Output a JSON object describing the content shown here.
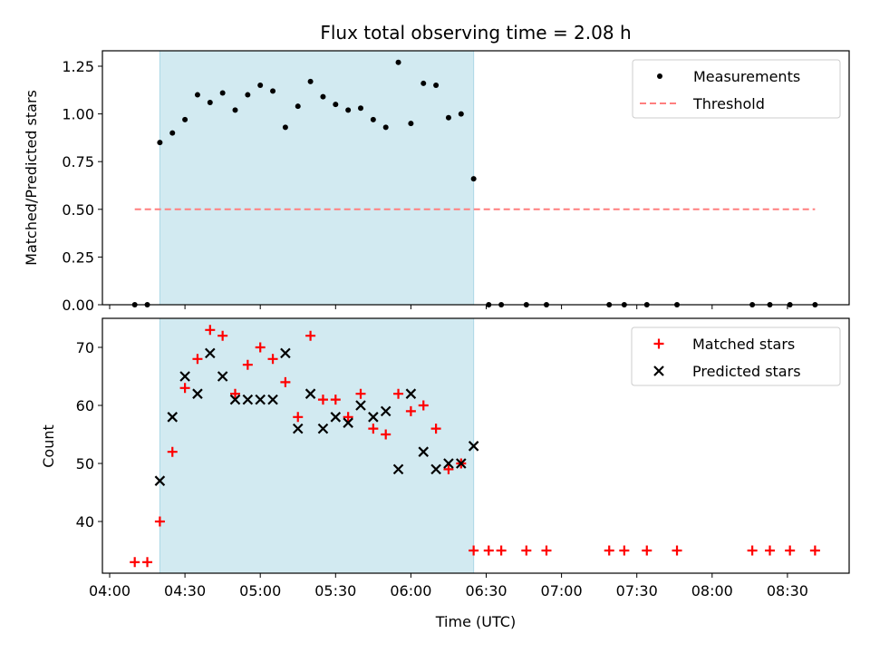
{
  "figure": {
    "title": "Flux total observing time = 2.08 h",
    "colors": {
      "span": "#add8e6",
      "threshold": "#ff7f7f",
      "matched": "#ff0000",
      "predicted": "#000000",
      "measurement": "#000000"
    }
  },
  "chart_data": [
    {
      "type": "scatter",
      "title": "Flux total observing time = 2.08 h",
      "xlabel": "",
      "ylabel": "Matched/Predicted stars",
      "xlim": [
        "04:00",
        "09:00"
      ],
      "ylim": [
        0,
        1.33
      ],
      "y_ticks": [
        "0.00",
        "0.25",
        "0.50",
        "0.75",
        "1.00",
        "1.25"
      ],
      "y_tick_values": [
        0,
        0.25,
        0.5,
        0.75,
        1.0,
        1.25
      ],
      "x_tick_labels_shown": false,
      "shaded_span": [
        "04:20",
        "06:25"
      ],
      "legend": {
        "placement": "upper right",
        "entries": [
          "Measurements",
          "Threshold"
        ]
      },
      "series": [
        {
          "name": "Measurements",
          "marker": "dot",
          "points": [
            [
              "04:10",
              0.0
            ],
            [
              "04:15",
              0.0
            ],
            [
              "04:20",
              0.85
            ],
            [
              "04:25",
              0.9
            ],
            [
              "04:30",
              0.97
            ],
            [
              "04:35",
              1.1
            ],
            [
              "04:40",
              1.06
            ],
            [
              "04:45",
              1.11
            ],
            [
              "04:50",
              1.02
            ],
            [
              "04:55",
              1.1
            ],
            [
              "05:00",
              1.15
            ],
            [
              "05:05",
              1.12
            ],
            [
              "05:10",
              0.93
            ],
            [
              "05:15",
              1.04
            ],
            [
              "05:20",
              1.17
            ],
            [
              "05:25",
              1.09
            ],
            [
              "05:30",
              1.05
            ],
            [
              "05:35",
              1.02
            ],
            [
              "05:40",
              1.03
            ],
            [
              "05:45",
              0.97
            ],
            [
              "05:50",
              0.93
            ],
            [
              "05:55",
              1.27
            ],
            [
              "06:00",
              0.95
            ],
            [
              "06:05",
              1.16
            ],
            [
              "06:10",
              1.15
            ],
            [
              "06:15",
              0.98
            ],
            [
              "06:20",
              1.0
            ],
            [
              "06:25",
              0.66
            ],
            [
              "06:31",
              0.0
            ],
            [
              "06:36",
              0.0
            ],
            [
              "06:46",
              0.0
            ],
            [
              "06:54",
              0.0
            ],
            [
              "07:19",
              0.0
            ],
            [
              "07:25",
              0.0
            ],
            [
              "07:34",
              0.0
            ],
            [
              "07:46",
              0.0
            ],
            [
              "08:16",
              0.0
            ],
            [
              "08:23",
              0.0
            ],
            [
              "08:31",
              0.0
            ],
            [
              "08:41",
              0.0
            ]
          ]
        },
        {
          "name": "Threshold",
          "marker": "dashed-line",
          "points": [
            [
              "04:10",
              0.5
            ],
            [
              "08:41",
              0.5
            ]
          ]
        }
      ]
    },
    {
      "type": "scatter",
      "title": "",
      "xlabel": "Time (UTC)",
      "ylabel": "Count",
      "xlim": [
        "04:00",
        "09:00"
      ],
      "ylim": [
        31,
        75
      ],
      "x_ticks": [
        "04:00",
        "04:30",
        "05:00",
        "05:30",
        "06:00",
        "06:30",
        "07:00",
        "07:30",
        "08:00",
        "08:30"
      ],
      "y_ticks": [
        "40",
        "50",
        "60",
        "70"
      ],
      "y_tick_values": [
        40,
        50,
        60,
        70
      ],
      "shaded_span": [
        "04:20",
        "06:25"
      ],
      "legend": {
        "placement": "upper right",
        "entries": [
          "Matched stars",
          "Predicted stars"
        ]
      },
      "series": [
        {
          "name": "Matched stars",
          "marker": "plus",
          "points": [
            [
              "04:10",
              33
            ],
            [
              "04:15",
              33
            ],
            [
              "04:20",
              40
            ],
            [
              "04:25",
              52
            ],
            [
              "04:30",
              63
            ],
            [
              "04:35",
              68
            ],
            [
              "04:40",
              73
            ],
            [
              "04:45",
              72
            ],
            [
              "04:50",
              62
            ],
            [
              "04:55",
              67
            ],
            [
              "05:00",
              70
            ],
            [
              "05:05",
              68
            ],
            [
              "05:10",
              64
            ],
            [
              "05:15",
              58
            ],
            [
              "05:20",
              72
            ],
            [
              "05:25",
              61
            ],
            [
              "05:30",
              61
            ],
            [
              "05:35",
              58
            ],
            [
              "05:40",
              62
            ],
            [
              "05:45",
              56
            ],
            [
              "05:50",
              55
            ],
            [
              "05:55",
              62
            ],
            [
              "06:00",
              59
            ],
            [
              "06:05",
              60
            ],
            [
              "06:10",
              56
            ],
            [
              "06:15",
              49
            ],
            [
              "06:20",
              50
            ],
            [
              "06:25",
              35
            ],
            [
              "06:31",
              35
            ],
            [
              "06:36",
              35
            ],
            [
              "06:46",
              35
            ],
            [
              "06:54",
              35
            ],
            [
              "07:19",
              35
            ],
            [
              "07:25",
              35
            ],
            [
              "07:34",
              35
            ],
            [
              "07:46",
              35
            ],
            [
              "08:16",
              35
            ],
            [
              "08:23",
              35
            ],
            [
              "08:31",
              35
            ],
            [
              "08:41",
              35
            ]
          ]
        },
        {
          "name": "Predicted stars",
          "marker": "x",
          "points": [
            [
              "04:20",
              47
            ],
            [
              "04:25",
              58
            ],
            [
              "04:30",
              65
            ],
            [
              "04:35",
              62
            ],
            [
              "04:40",
              69
            ],
            [
              "04:45",
              65
            ],
            [
              "04:50",
              61
            ],
            [
              "04:55",
              61
            ],
            [
              "05:00",
              61
            ],
            [
              "05:05",
              61
            ],
            [
              "05:10",
              69
            ],
            [
              "05:15",
              56
            ],
            [
              "05:20",
              62
            ],
            [
              "05:25",
              56
            ],
            [
              "05:30",
              58
            ],
            [
              "05:35",
              57
            ],
            [
              "05:40",
              60
            ],
            [
              "05:45",
              58
            ],
            [
              "05:50",
              59
            ],
            [
              "05:55",
              49
            ],
            [
              "06:00",
              62
            ],
            [
              "06:05",
              52
            ],
            [
              "06:10",
              49
            ],
            [
              "06:15",
              50
            ],
            [
              "06:20",
              50
            ],
            [
              "06:25",
              53
            ]
          ]
        }
      ]
    }
  ]
}
